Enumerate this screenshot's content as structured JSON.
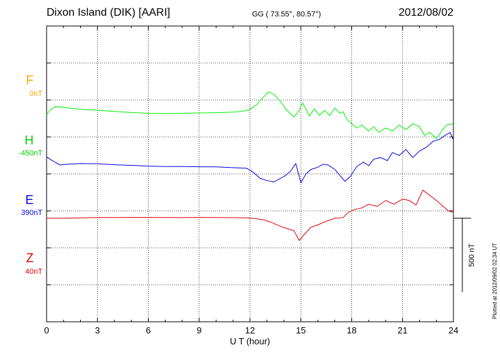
{
  "header": {
    "station": "Dixon Island (DIK)  [AARI]",
    "coords": "GG ( 73.55°,  80.57°)",
    "date": "2012/08/02"
  },
  "footer": {
    "plotted": "Plotted at 2012/09/02 02:34 UT"
  },
  "chart_data": {
    "type": "line",
    "xlabel": "U T (hour)",
    "xlim": [
      0,
      24
    ],
    "xticks": [
      0,
      3,
      6,
      9,
      12,
      15,
      18,
      21,
      24
    ],
    "ylim": [
      -1000,
      1000
    ],
    "ylim_note": "offset units (nT) relative to each trace's baseline; baselines at 750, 400, 50, -300",
    "scale_bar_label": "500 nT",
    "grid": true,
    "components": [
      {
        "name": "F",
        "baseline_label": "0nT",
        "color": "#ffa500",
        "baseline": 750,
        "data": []
      },
      {
        "name": "H",
        "baseline_label": "-450nT",
        "color": "#00ee00",
        "baseline": 400,
        "data": [
          [
            0,
            0
          ],
          [
            0.2,
            30
          ],
          [
            0.5,
            55
          ],
          [
            1,
            50
          ],
          [
            1.5,
            42
          ],
          [
            2,
            37
          ],
          [
            3,
            30
          ],
          [
            4,
            22
          ],
          [
            5,
            15
          ],
          [
            6,
            10
          ],
          [
            7,
            8
          ],
          [
            8,
            10
          ],
          [
            9,
            12
          ],
          [
            10,
            14
          ],
          [
            11,
            18
          ],
          [
            11.5,
            22
          ],
          [
            12,
            35
          ],
          [
            12.4,
            70
          ],
          [
            12.8,
            120
          ],
          [
            13.1,
            155
          ],
          [
            13.4,
            140
          ],
          [
            13.8,
            90
          ],
          [
            14.1,
            40
          ],
          [
            14.4,
            5
          ],
          [
            14.6,
            -15
          ],
          [
            14.9,
            30
          ],
          [
            15.1,
            80
          ],
          [
            15.3,
            40
          ],
          [
            15.5,
            -10
          ],
          [
            15.8,
            40
          ],
          [
            16.1,
            -5
          ],
          [
            16.4,
            30
          ],
          [
            16.7,
            -5
          ],
          [
            17,
            45
          ],
          [
            17.3,
            10
          ],
          [
            17.5,
            20
          ],
          [
            17.7,
            -30
          ],
          [
            18,
            -60
          ],
          [
            18.3,
            -90
          ],
          [
            18.6,
            -70
          ],
          [
            19,
            -110
          ],
          [
            19.3,
            -80
          ],
          [
            19.6,
            -120
          ],
          [
            20,
            -90
          ],
          [
            20.4,
            -110
          ],
          [
            20.8,
            -70
          ],
          [
            21.2,
            -100
          ],
          [
            21.6,
            -60
          ],
          [
            22,
            -80
          ],
          [
            22.3,
            -140
          ],
          [
            22.6,
            -120
          ],
          [
            23,
            -160
          ],
          [
            23.3,
            -110
          ],
          [
            23.6,
            -70
          ],
          [
            24,
            -60
          ]
        ]
      },
      {
        "name": "E",
        "baseline_label": "390nT",
        "color": "#0000dd",
        "baseline": 50,
        "data": [
          [
            0,
            65
          ],
          [
            0.4,
            35
          ],
          [
            0.8,
            10
          ],
          [
            1.2,
            15
          ],
          [
            2,
            20
          ],
          [
            3,
            18
          ],
          [
            4,
            12
          ],
          [
            5,
            8
          ],
          [
            6,
            3
          ],
          [
            7,
            0
          ],
          [
            8,
            0
          ],
          [
            9,
            -2
          ],
          [
            10,
            -3
          ],
          [
            11,
            -8
          ],
          [
            11.8,
            -12
          ],
          [
            12.2,
            -40
          ],
          [
            12.6,
            -80
          ],
          [
            13,
            -95
          ],
          [
            13.4,
            -105
          ],
          [
            13.8,
            -80
          ],
          [
            14.1,
            -60
          ],
          [
            14.4,
            -30
          ],
          [
            14.7,
            20
          ],
          [
            15,
            -110
          ],
          [
            15.3,
            -50
          ],
          [
            15.6,
            -20
          ],
          [
            16,
            -5
          ],
          [
            16.3,
            15
          ],
          [
            16.6,
            10
          ],
          [
            17,
            -20
          ],
          [
            17.3,
            -60
          ],
          [
            17.6,
            -100
          ],
          [
            17.9,
            -70
          ],
          [
            18.3,
            0
          ],
          [
            18.7,
            30
          ],
          [
            19,
            5
          ],
          [
            19.3,
            50
          ],
          [
            19.7,
            60
          ],
          [
            20.1,
            40
          ],
          [
            20.4,
            95
          ],
          [
            20.8,
            75
          ],
          [
            21.2,
            115
          ],
          [
            21.6,
            60
          ],
          [
            22,
            105
          ],
          [
            22.4,
            130
          ],
          [
            22.8,
            170
          ],
          [
            23.2,
            185
          ],
          [
            23.5,
            210
          ],
          [
            23.8,
            230
          ],
          [
            24,
            180
          ]
        ]
      },
      {
        "name": "Z",
        "baseline_label": "40nT",
        "color": "#dd0000",
        "baseline": -300,
        "data": [
          [
            0,
            0
          ],
          [
            1,
            0
          ],
          [
            2,
            3
          ],
          [
            3,
            5
          ],
          [
            4,
            5
          ],
          [
            5,
            6
          ],
          [
            6,
            6
          ],
          [
            7,
            5
          ],
          [
            8,
            4
          ],
          [
            9,
            6
          ],
          [
            10,
            5
          ],
          [
            11,
            4
          ],
          [
            12,
            2
          ],
          [
            12.8,
            -10
          ],
          [
            13.3,
            -30
          ],
          [
            13.8,
            -55
          ],
          [
            14.2,
            -70
          ],
          [
            14.6,
            -85
          ],
          [
            14.9,
            -150
          ],
          [
            15.2,
            -110
          ],
          [
            15.6,
            -60
          ],
          [
            16,
            -45
          ],
          [
            16.5,
            -20
          ],
          [
            17,
            0
          ],
          [
            17.5,
            5
          ],
          [
            17.8,
            40
          ],
          [
            18.2,
            60
          ],
          [
            18.6,
            70
          ],
          [
            19,
            95
          ],
          [
            19.5,
            80
          ],
          [
            20,
            120
          ],
          [
            20.5,
            95
          ],
          [
            21,
            130
          ],
          [
            21.4,
            120
          ],
          [
            21.8,
            90
          ],
          [
            22.2,
            190
          ],
          [
            22.6,
            155
          ],
          [
            23,
            120
          ],
          [
            23.4,
            80
          ],
          [
            23.7,
            50
          ],
          [
            24,
            40
          ]
        ]
      }
    ]
  }
}
